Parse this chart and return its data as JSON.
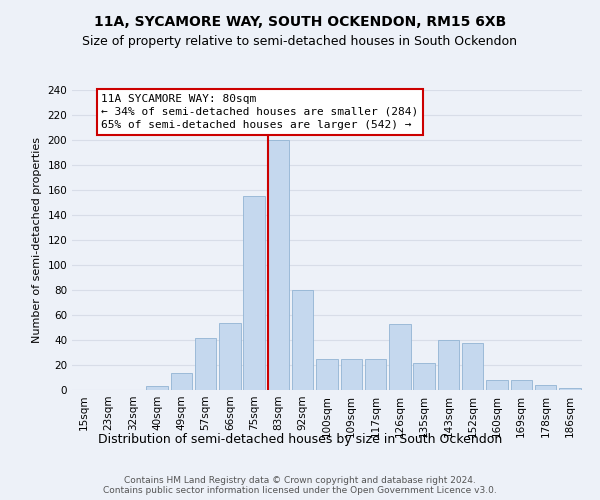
{
  "title": "11A, SYCAMORE WAY, SOUTH OCKENDON, RM15 6XB",
  "subtitle": "Size of property relative to semi-detached houses in South Ockendon",
  "xlabel": "Distribution of semi-detached houses by size in South Ockendon",
  "ylabel": "Number of semi-detached properties",
  "footer": "Contains HM Land Registry data © Crown copyright and database right 2024.\nContains public sector information licensed under the Open Government Licence v3.0.",
  "categories": [
    "15sqm",
    "23sqm",
    "32sqm",
    "40sqm",
    "49sqm",
    "57sqm",
    "66sqm",
    "75sqm",
    "83sqm",
    "92sqm",
    "100sqm",
    "109sqm",
    "117sqm",
    "126sqm",
    "135sqm",
    "143sqm",
    "152sqm",
    "160sqm",
    "169sqm",
    "178sqm",
    "186sqm"
  ],
  "values": [
    0,
    0,
    0,
    3,
    14,
    42,
    54,
    155,
    200,
    80,
    25,
    25,
    25,
    53,
    22,
    40,
    38,
    8,
    8,
    4,
    2
  ],
  "bar_color": "#c5d8ee",
  "bar_edge_color": "#92b4d4",
  "annotation_title": "11A SYCAMORE WAY: 80sqm",
  "annotation_line1": "← 34% of semi-detached houses are smaller (284)",
  "annotation_line2": "65% of semi-detached houses are larger (542) →",
  "annotation_box_facecolor": "#ffffff",
  "annotation_box_edgecolor": "#cc0000",
  "vline_color": "#cc0000",
  "vline_x_idx": 8,
  "ylim_max": 240,
  "yticks": [
    0,
    20,
    40,
    60,
    80,
    100,
    120,
    140,
    160,
    180,
    200,
    220,
    240
  ],
  "bg_color": "#edf1f8",
  "grid_color": "#d8dde8",
  "title_fontsize": 10,
  "subtitle_fontsize": 9,
  "xlabel_fontsize": 9,
  "ylabel_fontsize": 8,
  "tick_fontsize": 7.5,
  "annotation_fontsize": 8,
  "footer_fontsize": 6.5
}
